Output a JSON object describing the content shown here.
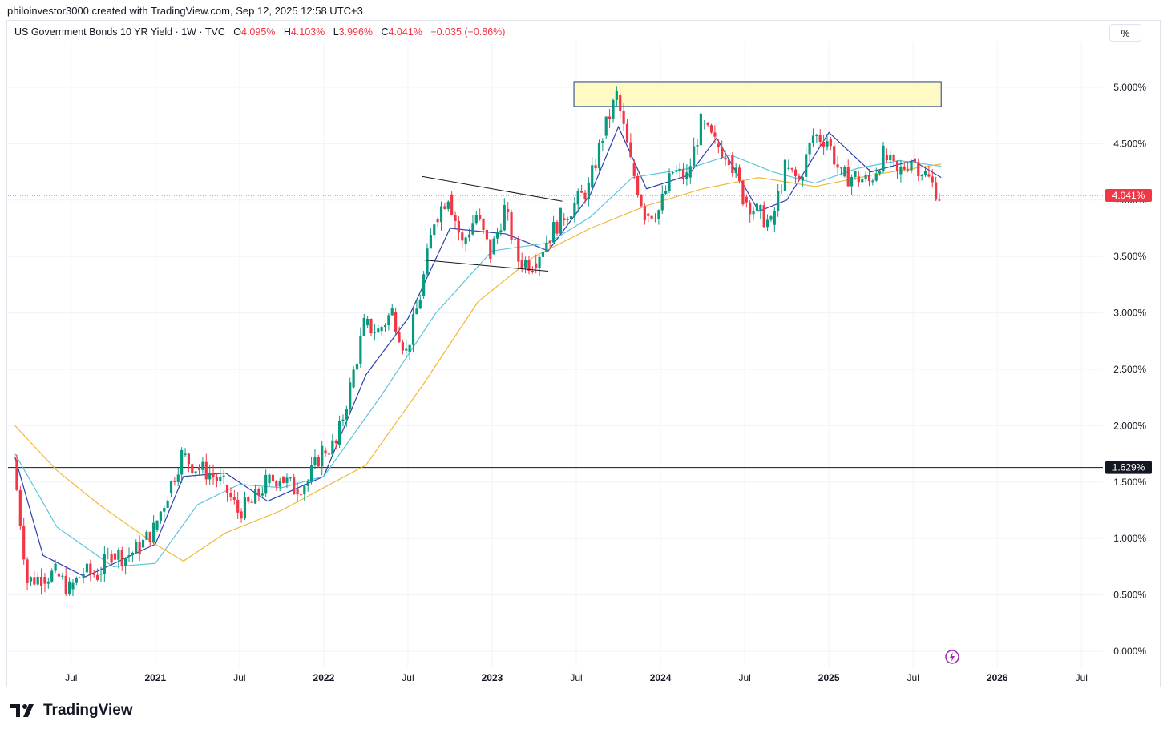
{
  "caption": "philoinvestor3000 created with TradingView.com, Sep 12, 2025 12:58 UTC+3",
  "legend": {
    "symbol": "US Government Bonds 10 YR Yield · 1W · TVC",
    "o_label": "O",
    "o_value": "4.095%",
    "h_label": "H",
    "h_value": "4.103%",
    "l_label": "L",
    "l_value": "3.996%",
    "c_label": "C",
    "c_value": "4.041%",
    "change": "−0.035 (−0.86%)"
  },
  "unit_button": "%",
  "brand": "TradingView",
  "colors": {
    "up": "#089981",
    "down": "#f23645",
    "ma_fast": "#2a3fb0",
    "ma_mid": "#5bc6d8",
    "ma_slow": "#f2b83b",
    "zone_fill": "#fff9c4",
    "zone_border": "#1f3a93",
    "price_line": "#f23645",
    "h_line": "#131722"
  },
  "chart_data": {
    "type": "candlestick",
    "title": "",
    "y_unit": "%",
    "ylim": [
      -0.1,
      5.3
    ],
    "y_ticks": [
      "5.000%",
      "4.500%",
      "4.000%",
      "3.500%",
      "3.000%",
      "2.500%",
      "2.000%",
      "1.500%",
      "1.000%",
      "0.500%",
      "0.000%"
    ],
    "x_ticks": [
      "Jul",
      "2021",
      "Jul",
      "2022",
      "Jul",
      "2023",
      "Jul",
      "2024",
      "Jul",
      "2025",
      "Jul",
      "2026",
      "Jul"
    ],
    "x_tick_dates": [
      "2020-07",
      "2021-01",
      "2021-07",
      "2022-01",
      "2022-07",
      "2023-01",
      "2023-07",
      "2024-01",
      "2024-07",
      "2025-01",
      "2025-07",
      "2026-01",
      "2026-07"
    ],
    "last_price_label": "4.041%",
    "last_price": 4.041,
    "horizontal_line_label": "1.629%",
    "horizontal_line": 1.629,
    "resistance_zone": {
      "start": "2023-07",
      "end": "2025-09",
      "low": 4.83,
      "high": 5.05
    },
    "trendlines": [
      {
        "from": [
          "2022-08",
          "4.21"
        ],
        "to": [
          "2023-06",
          "3.99"
        ]
      },
      {
        "from": [
          "2022-08",
          "3.47"
        ],
        "to": [
          "2023-05",
          "3.37"
        ]
      }
    ],
    "series_path": [
      {
        "date": "2020-03",
        "value": 1.7
      },
      {
        "date": "2020-04",
        "value": 0.62
      },
      {
        "date": "2020-05",
        "value": 0.66
      },
      {
        "date": "2020-06",
        "value": 0.69
      },
      {
        "date": "2020-07",
        "value": 0.55
      },
      {
        "date": "2020-08",
        "value": 0.7
      },
      {
        "date": "2020-09",
        "value": 0.68
      },
      {
        "date": "2020-10",
        "value": 0.87
      },
      {
        "date": "2020-11",
        "value": 0.84
      },
      {
        "date": "2020-12",
        "value": 0.92
      },
      {
        "date": "2021-01",
        "value": 1.08
      },
      {
        "date": "2021-02",
        "value": 1.4
      },
      {
        "date": "2021-03",
        "value": 1.74
      },
      {
        "date": "2021-04",
        "value": 1.63
      },
      {
        "date": "2021-05",
        "value": 1.58
      },
      {
        "date": "2021-06",
        "value": 1.47
      },
      {
        "date": "2021-07",
        "value": 1.24
      },
      {
        "date": "2021-08",
        "value": 1.31
      },
      {
        "date": "2021-09",
        "value": 1.49
      },
      {
        "date": "2021-10",
        "value": 1.55
      },
      {
        "date": "2021-11",
        "value": 1.44
      },
      {
        "date": "2021-12",
        "value": 1.51
      },
      {
        "date": "2022-01",
        "value": 1.78
      },
      {
        "date": "2022-02",
        "value": 1.83
      },
      {
        "date": "2022-03",
        "value": 2.34
      },
      {
        "date": "2022-04",
        "value": 2.89
      },
      {
        "date": "2022-05",
        "value": 2.84
      },
      {
        "date": "2022-06",
        "value": 3.01
      },
      {
        "date": "2022-07",
        "value": 2.65
      },
      {
        "date": "2022-08",
        "value": 3.15
      },
      {
        "date": "2022-09",
        "value": 3.83
      },
      {
        "date": "2022-10",
        "value": 4.05
      },
      {
        "date": "2022-11",
        "value": 3.61
      },
      {
        "date": "2022-12",
        "value": 3.87
      },
      {
        "date": "2023-01",
        "value": 3.52
      },
      {
        "date": "2023-02",
        "value": 3.92
      },
      {
        "date": "2023-03",
        "value": 3.47
      },
      {
        "date": "2023-04",
        "value": 3.44
      },
      {
        "date": "2023-05",
        "value": 3.64
      },
      {
        "date": "2023-06",
        "value": 3.84
      },
      {
        "date": "2023-07",
        "value": 3.96
      },
      {
        "date": "2023-08",
        "value": 4.11
      },
      {
        "date": "2023-09",
        "value": 4.57
      },
      {
        "date": "2023-10",
        "value": 4.93
      },
      {
        "date": "2023-11",
        "value": 4.33
      },
      {
        "date": "2023-12",
        "value": 3.88
      },
      {
        "date": "2024-01",
        "value": 3.91
      },
      {
        "date": "2024-02",
        "value": 4.25
      },
      {
        "date": "2024-03",
        "value": 4.2
      },
      {
        "date": "2024-04",
        "value": 4.68
      },
      {
        "date": "2024-05",
        "value": 4.5
      },
      {
        "date": "2024-06",
        "value": 4.4
      },
      {
        "date": "2024-07",
        "value": 4.03
      },
      {
        "date": "2024-08",
        "value": 3.9
      },
      {
        "date": "2024-09",
        "value": 3.78
      },
      {
        "date": "2024-10",
        "value": 4.28
      },
      {
        "date": "2024-11",
        "value": 4.17
      },
      {
        "date": "2024-12",
        "value": 4.57
      },
      {
        "date": "2025-01",
        "value": 4.54
      },
      {
        "date": "2025-02",
        "value": 4.21
      },
      {
        "date": "2025-03",
        "value": 4.21
      },
      {
        "date": "2025-04",
        "value": 4.16
      },
      {
        "date": "2025-05",
        "value": 4.4
      },
      {
        "date": "2025-06",
        "value": 4.23
      },
      {
        "date": "2025-07",
        "value": 4.37
      },
      {
        "date": "2025-08",
        "value": 4.23
      },
      {
        "date": "2025-09",
        "value": 4.04
      }
    ],
    "moving_averages": [
      {
        "color": "#2a3fb0",
        "points": [
          [
            "2020-03",
            1.72
          ],
          [
            "2020-05",
            0.85
          ],
          [
            "2020-08",
            0.66
          ],
          [
            "2021-01",
            0.95
          ],
          [
            "2021-03",
            1.55
          ],
          [
            "2021-06",
            1.58
          ],
          [
            "2021-09",
            1.33
          ],
          [
            "2022-01",
            1.55
          ],
          [
            "2022-04",
            2.45
          ],
          [
            "2022-07",
            2.95
          ],
          [
            "2022-10",
            3.75
          ],
          [
            "2023-02",
            3.7
          ],
          [
            "2023-05",
            3.55
          ],
          [
            "2023-08",
            4.05
          ],
          [
            "2023-10",
            4.65
          ],
          [
            "2023-12",
            4.1
          ],
          [
            "2024-03",
            4.22
          ],
          [
            "2024-05",
            4.55
          ],
          [
            "2024-08",
            3.9
          ],
          [
            "2024-10",
            4.0
          ],
          [
            "2025-01",
            4.6
          ],
          [
            "2025-04",
            4.25
          ],
          [
            "2025-07",
            4.35
          ],
          [
            "2025-09",
            4.2
          ]
        ]
      },
      {
        "color": "#5bc6d8",
        "points": [
          [
            "2020-03",
            1.75
          ],
          [
            "2020-06",
            1.1
          ],
          [
            "2020-10",
            0.75
          ],
          [
            "2021-01",
            0.78
          ],
          [
            "2021-04",
            1.3
          ],
          [
            "2021-07",
            1.48
          ],
          [
            "2021-10",
            1.45
          ],
          [
            "2022-01",
            1.55
          ],
          [
            "2022-05",
            2.25
          ],
          [
            "2022-09",
            3.0
          ],
          [
            "2023-01",
            3.55
          ],
          [
            "2023-05",
            3.62
          ],
          [
            "2023-08",
            3.85
          ],
          [
            "2023-11",
            4.2
          ],
          [
            "2024-03",
            4.28
          ],
          [
            "2024-06",
            4.4
          ],
          [
            "2024-09",
            4.25
          ],
          [
            "2024-12",
            4.15
          ],
          [
            "2025-03",
            4.28
          ],
          [
            "2025-06",
            4.35
          ],
          [
            "2025-09",
            4.3
          ]
        ]
      },
      {
        "color": "#f2b83b",
        "points": [
          [
            "2020-03",
            2.0
          ],
          [
            "2020-06",
            1.6
          ],
          [
            "2020-09",
            1.3
          ],
          [
            "2021-01",
            0.95
          ],
          [
            "2021-03",
            0.8
          ],
          [
            "2021-06",
            1.05
          ],
          [
            "2021-10",
            1.25
          ],
          [
            "2022-01",
            1.45
          ],
          [
            "2022-04",
            1.65
          ],
          [
            "2022-08",
            2.35
          ],
          [
            "2022-12",
            3.1
          ],
          [
            "2023-04",
            3.5
          ],
          [
            "2023-08",
            3.75
          ],
          [
            "2023-12",
            3.95
          ],
          [
            "2024-04",
            4.1
          ],
          [
            "2024-08",
            4.2
          ],
          [
            "2024-12",
            4.12
          ],
          [
            "2025-04",
            4.22
          ],
          [
            "2025-08",
            4.3
          ],
          [
            "2025-09",
            4.32
          ]
        ]
      }
    ],
    "grid": true,
    "legend": "top-left"
  }
}
